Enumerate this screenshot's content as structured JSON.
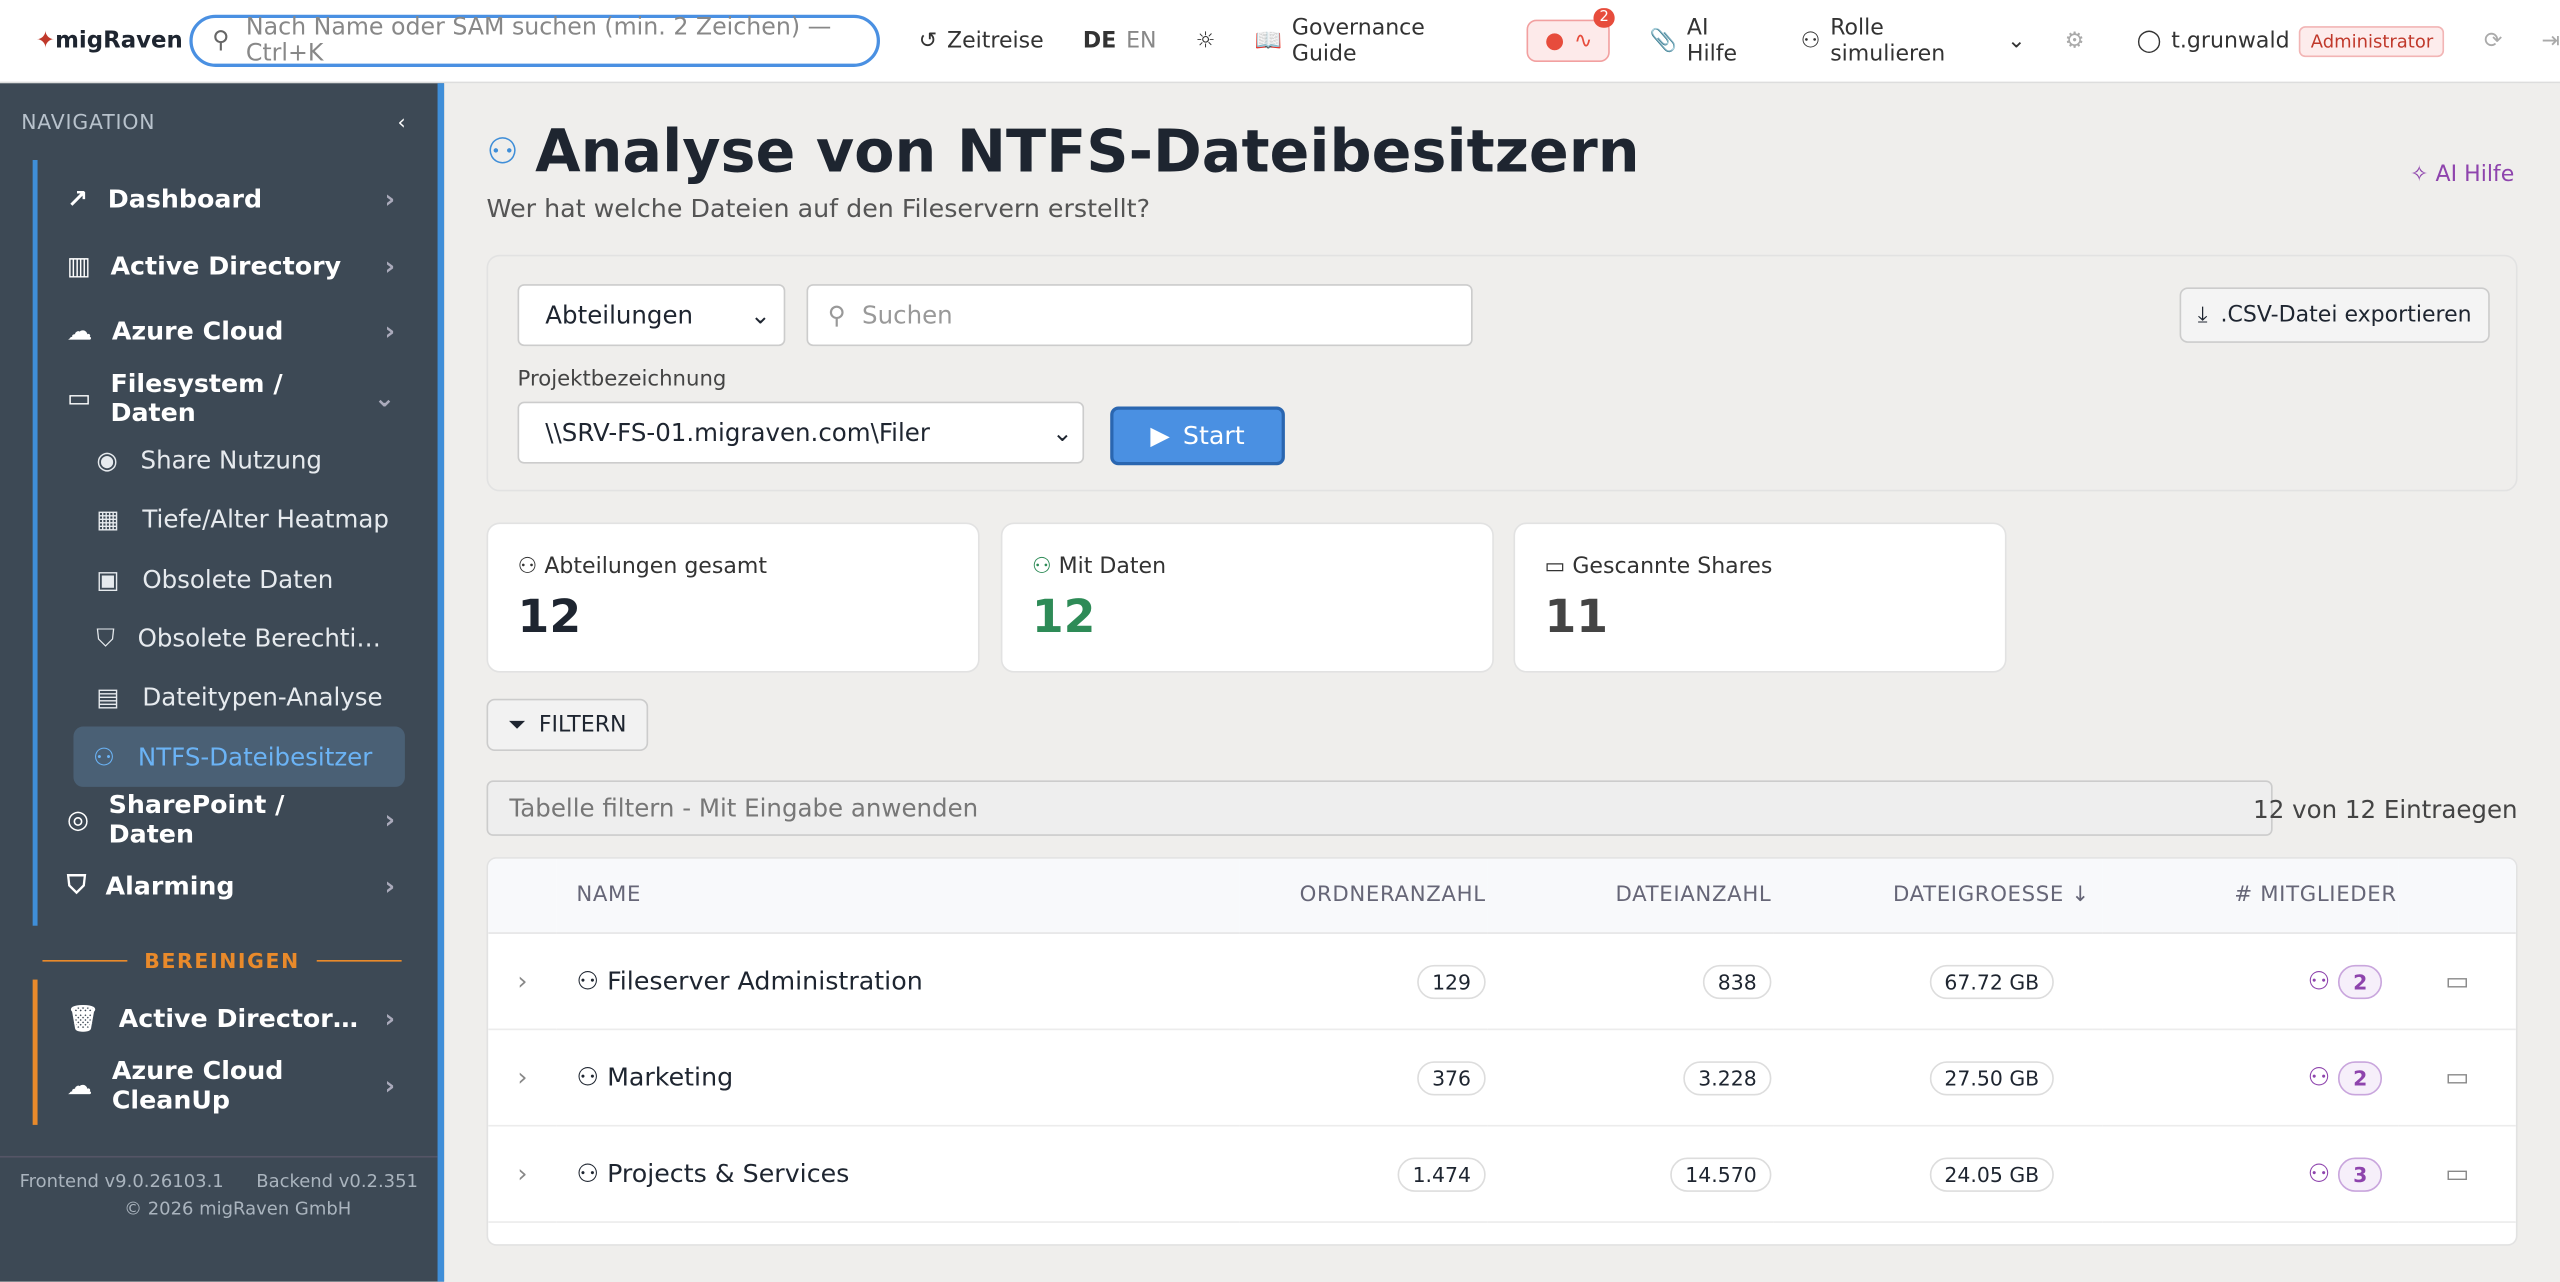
{
  "header": {
    "logo": "migRaven",
    "search_placeholder": "Nach Name oder SAM suchen (min. 2 Zeichen) — Ctrl+K",
    "time_travel": "Zeitreise",
    "lang_de": "DE",
    "lang_en": "EN",
    "governance": "Governance Guide",
    "alerts_badge": "2",
    "ai_help": "AI Hilfe",
    "simulate_role": "Rolle simulieren",
    "user": "t.grunwald",
    "role": "Administrator"
  },
  "sidebar": {
    "heading": "NAVIGATION",
    "items": [
      "Dashboard",
      "Active Directory",
      "Azure Cloud",
      "Filesystem / Daten"
    ],
    "sub_items": [
      "Share Nutzung",
      "Tiefe/Alter Heatmap",
      "Obsolete Daten",
      "Obsolete Berechtigungen",
      "Dateitypen-Analyse",
      "NTFS-Dateibesitzer"
    ],
    "items_after": [
      "SharePoint / Daten",
      "Alarming"
    ],
    "cleanup_heading": "BEREINIGEN",
    "cleanup_items": [
      "Active Directory CleanUp",
      "Azure Cloud CleanUp"
    ],
    "frontend": "Frontend v9.0.26103.1",
    "backend": "Backend v0.2.351",
    "copyright": "© 2026 migRaven GmbH"
  },
  "page": {
    "title": "Analyse von NTFS-Dateibesitzern",
    "subtitle": "Wer hat welche Dateien auf den Fileservern erstellt?",
    "ai_help": "AI Hilfe",
    "department_select": "Abteilungen",
    "search_placeholder": "Suchen",
    "export": ".CSV-Datei exportieren",
    "project_label": "Projektbezeichnung",
    "project_value": "\\\\SRV-FS-01.migraven.com\\Filer",
    "start": "Start",
    "stats": [
      {
        "label": "Abteilungen gesamt",
        "value": "12"
      },
      {
        "label": "Mit Daten",
        "value": "12"
      },
      {
        "label": "Gescannte Shares",
        "value": "11"
      }
    ],
    "filter_button": "FILTERN",
    "table_filter_placeholder": "Tabelle filtern - Mit Eingabe anwenden",
    "entries": "12 von 12 Eintraegen",
    "table": {
      "columns": [
        "NAME",
        "ORDNERANZAHL",
        "DATEIANZAHL",
        "DATEIGROESSE",
        "# MITGLIEDER"
      ],
      "rows": [
        [
          "Fileserver Administration",
          "129",
          "838",
          "67.72 GB",
          "2"
        ],
        [
          "Marketing",
          "376",
          "3.228",
          "27.50 GB",
          "2"
        ],
        [
          "Projects & Services",
          "1.474",
          "14.570",
          "24.05 GB",
          "3"
        ]
      ]
    }
  }
}
